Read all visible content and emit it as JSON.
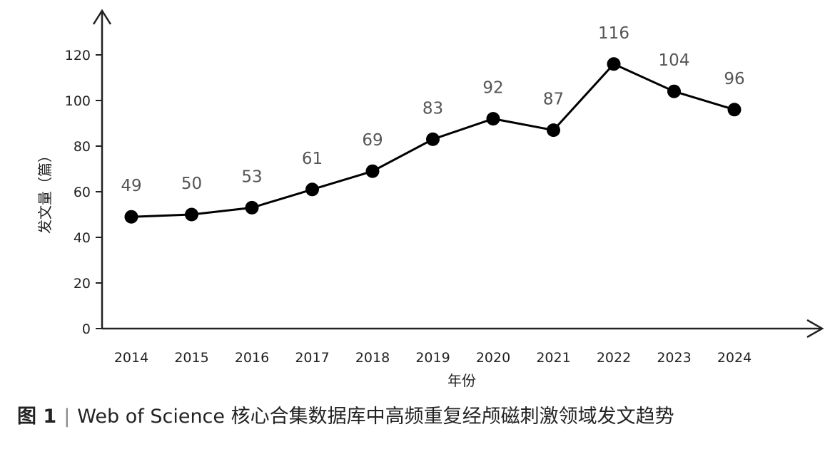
{
  "chart_data": {
    "type": "line",
    "x": [
      "2014",
      "2015",
      "2016",
      "2017",
      "2018",
      "2019",
      "2020",
      "2021",
      "2022",
      "2023",
      "2024"
    ],
    "series": [
      {
        "values": [
          49,
          50,
          53,
          61,
          69,
          83,
          92,
          87,
          116,
          104,
          96
        ]
      }
    ],
    "xlabel": "年份",
    "ylabel": "发文量（篇）",
    "ylim": [
      0,
      120
    ],
    "yticks": [
      0,
      20,
      40,
      60,
      80,
      100,
      120
    ],
    "grid": false,
    "data_labels": true
  },
  "caption": {
    "label": "图 1",
    "separator": "|",
    "text": "Web of Science 核心合集数据库中高频重复经颅磁刺激领域发文趋势"
  }
}
